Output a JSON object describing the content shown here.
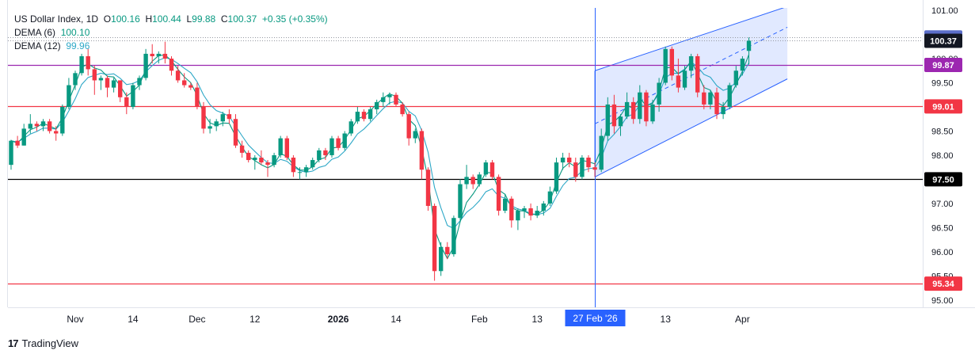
{
  "legend": {
    "symbol": "US Dollar Index, 1D",
    "o_label": "O",
    "o_value": "100.16",
    "h_label": "H",
    "h_value": "100.44",
    "l_label": "L",
    "l_value": "99.88",
    "c_label": "C",
    "c_value": "100.37",
    "change": "+0.35 (+0.35%)",
    "dema6_label": "DEMA (6)",
    "dema6_value": "100.10",
    "dema12_label": "DEMA (12)",
    "dema12_value": "99.96"
  },
  "brand": {
    "name": "TradingView",
    "logo": "17"
  },
  "colors": {
    "up": "#089981",
    "down": "#f23645",
    "dema6": "#089981",
    "dema12": "#2ea8c7",
    "channel_line": "#2962ff",
    "channel_fill": "#2962ff",
    "line_purple": "#9c27b0",
    "line_red": "#f23645",
    "line_black": "#000000",
    "last_price": "#131722",
    "crosshair": "#2962ff"
  },
  "chart_data": {
    "type": "candlestick",
    "title": "US Dollar Index, 1D",
    "ylim": [
      94.85,
      101.05
    ],
    "y_ticks": [
      "101.00",
      "100.50",
      "100.00",
      "99.50",
      "99.00",
      "98.50",
      "98.00",
      "97.50",
      "97.00",
      "96.50",
      "96.00",
      "95.50",
      "95.00"
    ],
    "x_labels": [
      {
        "label": "Nov",
        "index": 10
      },
      {
        "label": "14",
        "index": 19
      },
      {
        "label": "Dec",
        "index": 29
      },
      {
        "label": "12",
        "index": 38
      },
      {
        "label": "2026",
        "index": 51
      },
      {
        "label": "14",
        "index": 60
      },
      {
        "label": "Feb",
        "index": 73
      },
      {
        "label": "13",
        "index": 82
      },
      {
        "label": "13",
        "index": 102
      },
      {
        "label": "Apr",
        "index": 114
      }
    ],
    "crosshair": {
      "index": 91,
      "label": "27 Feb '26"
    },
    "horizontal_levels": [
      {
        "value": 100.44,
        "label": "100.44",
        "style": "dotted",
        "badge_color": "#5b6ec9"
      },
      {
        "value": 100.37,
        "label": "100.37",
        "style": "dotted",
        "badge_color": "#131722"
      },
      {
        "value": 99.87,
        "label": "99.87",
        "style": "solid",
        "color": "#9c27b0"
      },
      {
        "value": 99.01,
        "label": "99.01",
        "style": "solid",
        "color": "#f23645"
      },
      {
        "value": 97.5,
        "label": "97.50",
        "style": "solid",
        "color": "#000000"
      },
      {
        "value": 95.34,
        "label": "95.34",
        "style": "solid",
        "color": "#f23645"
      }
    ],
    "channel": {
      "start_index": 91,
      "end_index": 121,
      "upper": [
        99.75,
        101.08
      ],
      "mid": [
        98.65,
        100.65
      ],
      "lower": [
        97.55,
        99.58
      ]
    },
    "candles": [
      [
        97.8,
        98.32,
        97.7,
        98.3
      ],
      [
        98.3,
        98.4,
        98.15,
        98.2
      ],
      [
        98.2,
        98.65,
        98.2,
        98.55
      ],
      [
        98.55,
        98.85,
        98.45,
        98.65
      ],
      [
        98.65,
        98.7,
        98.5,
        98.6
      ],
      [
        98.6,
        98.75,
        98.5,
        98.7
      ],
      [
        98.7,
        98.75,
        98.45,
        98.5
      ],
      [
        98.5,
        98.6,
        98.3,
        98.45
      ],
      [
        98.45,
        99.05,
        98.4,
        99.0
      ],
      [
        99.0,
        99.6,
        98.95,
        99.45
      ],
      [
        99.45,
        99.75,
        99.35,
        99.7
      ],
      [
        99.7,
        100.1,
        99.65,
        100.05
      ],
      [
        100.05,
        100.2,
        99.65,
        99.78
      ],
      [
        99.78,
        99.85,
        99.25,
        99.55
      ],
      [
        99.55,
        99.65,
        99.35,
        99.6
      ],
      [
        99.6,
        99.65,
        99.2,
        99.4
      ],
      [
        99.4,
        99.6,
        99.3,
        99.55
      ],
      [
        99.55,
        99.55,
        99.1,
        99.2
      ],
      [
        99.2,
        99.3,
        98.85,
        99.0
      ],
      [
        99.0,
        99.5,
        98.95,
        99.45
      ],
      [
        99.45,
        99.65,
        99.35,
        99.6
      ],
      [
        99.6,
        100.2,
        99.55,
        100.1
      ],
      [
        100.1,
        100.3,
        99.9,
        100.05
      ],
      [
        100.05,
        100.15,
        99.9,
        100.1
      ],
      [
        100.1,
        100.35,
        99.9,
        100.0
      ],
      [
        100.0,
        100.05,
        99.65,
        99.75
      ],
      [
        99.75,
        99.85,
        99.5,
        99.55
      ],
      [
        99.55,
        99.7,
        99.4,
        99.45
      ],
      [
        99.45,
        99.5,
        99.35,
        99.4
      ],
      [
        99.4,
        99.5,
        98.95,
        99.0
      ],
      [
        99.0,
        99.1,
        98.45,
        98.55
      ],
      [
        98.55,
        98.75,
        98.45,
        98.6
      ],
      [
        98.6,
        98.75,
        98.5,
        98.7
      ],
      [
        98.7,
        98.9,
        98.6,
        98.85
      ],
      [
        98.85,
        98.95,
        98.65,
        98.75
      ],
      [
        98.75,
        98.85,
        98.15,
        98.2
      ],
      [
        98.2,
        98.3,
        97.95,
        98.05
      ],
      [
        98.05,
        98.1,
        97.85,
        97.9
      ],
      [
        97.9,
        98.0,
        97.7,
        97.95
      ],
      [
        97.95,
        98.1,
        97.8,
        97.85
      ],
      [
        97.85,
        97.9,
        97.55,
        97.8
      ],
      [
        97.8,
        98.05,
        97.75,
        98.0
      ],
      [
        98.0,
        98.4,
        97.95,
        98.35
      ],
      [
        98.35,
        98.4,
        97.9,
        97.95
      ],
      [
        97.95,
        98.0,
        97.55,
        97.65
      ],
      [
        97.65,
        97.75,
        97.5,
        97.65
      ],
      [
        97.65,
        97.8,
        97.55,
        97.75
      ],
      [
        97.75,
        97.95,
        97.7,
        97.9
      ],
      [
        97.9,
        98.15,
        97.85,
        98.1
      ],
      [
        98.1,
        98.15,
        97.9,
        98.0
      ],
      [
        98.0,
        98.4,
        97.95,
        98.35
      ],
      [
        98.35,
        98.4,
        98.1,
        98.15
      ],
      [
        98.15,
        98.5,
        98.1,
        98.45
      ],
      [
        98.45,
        98.75,
        98.4,
        98.7
      ],
      [
        98.7,
        99.0,
        98.65,
        98.9
      ],
      [
        98.9,
        98.95,
        98.7,
        98.75
      ],
      [
        98.75,
        99.0,
        98.7,
        98.95
      ],
      [
        98.95,
        99.15,
        98.85,
        99.1
      ],
      [
        99.1,
        99.3,
        99.0,
        99.2
      ],
      [
        99.2,
        99.3,
        99.05,
        99.25
      ],
      [
        99.25,
        99.3,
        99.0,
        99.05
      ],
      [
        99.05,
        99.1,
        98.8,
        98.85
      ],
      [
        98.85,
        98.9,
        98.2,
        98.35
      ],
      [
        98.35,
        98.55,
        98.25,
        98.5
      ],
      [
        98.5,
        98.55,
        97.5,
        97.7
      ],
      [
        97.7,
        97.75,
        96.85,
        96.95
      ],
      [
        96.95,
        97.0,
        95.4,
        95.6
      ],
      [
        95.6,
        96.2,
        95.5,
        96.1
      ],
      [
        96.1,
        96.2,
        95.85,
        95.95
      ],
      [
        95.95,
        96.75,
        95.9,
        96.7
      ],
      [
        96.7,
        97.5,
        96.65,
        97.4
      ],
      [
        97.4,
        97.8,
        97.3,
        97.55
      ],
      [
        97.55,
        97.6,
        97.3,
        97.4
      ],
      [
        97.4,
        97.65,
        97.35,
        97.6
      ],
      [
        97.6,
        97.9,
        97.55,
        97.85
      ],
      [
        97.85,
        97.9,
        97.5,
        97.55
      ],
      [
        97.55,
        97.6,
        96.75,
        96.85
      ],
      [
        96.85,
        97.2,
        96.8,
        97.1
      ],
      [
        97.1,
        97.15,
        96.5,
        96.65
      ],
      [
        96.65,
        96.9,
        96.45,
        96.85
      ],
      [
        96.85,
        96.95,
        96.7,
        96.9
      ],
      [
        96.9,
        97.0,
        96.65,
        96.75
      ],
      [
        96.75,
        96.95,
        96.7,
        96.85
      ],
      [
        96.85,
        97.05,
        96.75,
        97.0
      ],
      [
        97.0,
        97.35,
        96.95,
        97.25
      ],
      [
        97.25,
        97.95,
        97.2,
        97.85
      ],
      [
        97.85,
        98.05,
        97.7,
        97.95
      ],
      [
        97.95,
        98.05,
        97.75,
        97.85
      ],
      [
        97.85,
        97.95,
        97.45,
        97.55
      ],
      [
        97.55,
        98.0,
        97.5,
        97.95
      ],
      [
        97.95,
        98.0,
        97.65,
        97.75
      ],
      [
        97.75,
        97.85,
        97.55,
        97.7
      ],
      [
        97.7,
        98.55,
        97.65,
        98.4
      ],
      [
        98.4,
        99.2,
        98.3,
        99.05
      ],
      [
        99.05,
        99.25,
        98.45,
        98.6
      ],
      [
        98.6,
        98.85,
        98.4,
        98.8
      ],
      [
        98.8,
        99.3,
        98.75,
        99.1
      ],
      [
        99.1,
        99.2,
        98.65,
        98.75
      ],
      [
        98.75,
        99.45,
        98.65,
        99.3
      ],
      [
        99.3,
        99.35,
        98.6,
        98.7
      ],
      [
        98.7,
        99.15,
        98.65,
        99.05
      ],
      [
        99.05,
        99.6,
        98.9,
        99.5
      ],
      [
        99.5,
        100.25,
        99.45,
        100.2
      ],
      [
        100.2,
        100.25,
        99.55,
        99.65
      ],
      [
        99.65,
        100.0,
        99.3,
        99.4
      ],
      [
        99.4,
        99.85,
        99.35,
        99.75
      ],
      [
        99.75,
        100.1,
        99.6,
        100.05
      ],
      [
        100.05,
        100.1,
        99.2,
        99.3
      ],
      [
        99.3,
        99.45,
        98.95,
        99.05
      ],
      [
        99.05,
        99.35,
        98.95,
        99.3
      ],
      [
        99.3,
        99.4,
        98.75,
        98.85
      ],
      [
        98.85,
        99.1,
        98.75,
        99.0
      ],
      [
        99.0,
        99.5,
        98.95,
        99.45
      ],
      [
        99.45,
        99.85,
        99.4,
        99.75
      ],
      [
        99.75,
        100.05,
        99.65,
        100.0
      ],
      [
        100.16,
        100.44,
        99.88,
        100.37
      ]
    ],
    "last": {
      "open": 100.16,
      "high": 100.44,
      "low": 99.88,
      "close": 100.37
    }
  }
}
